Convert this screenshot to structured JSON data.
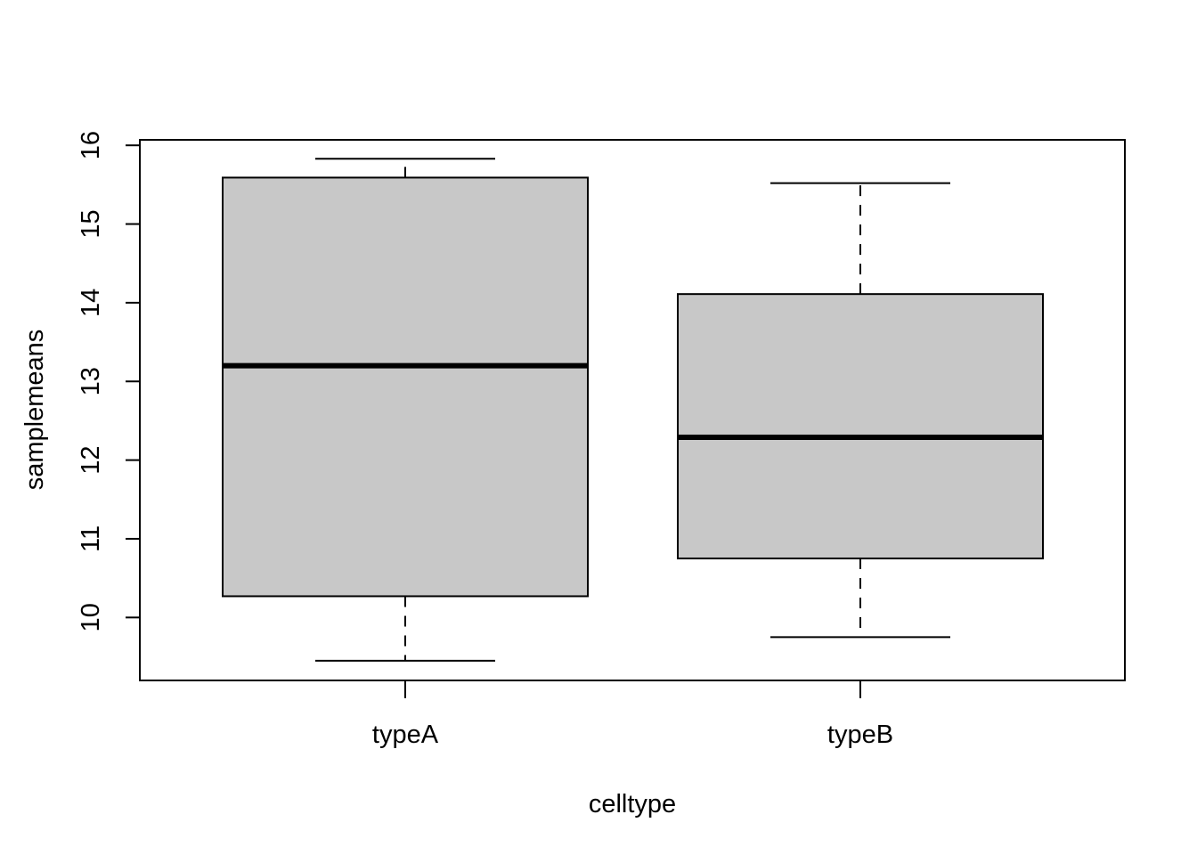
{
  "chart_data": {
    "type": "boxplot",
    "xlabel": "celltype",
    "ylabel": "samplemeans",
    "categories": [
      "typeA",
      "typeB"
    ],
    "boxes": [
      {
        "category": "typeA",
        "whisker_low": 9.45,
        "q1": 10.27,
        "median": 13.2,
        "q3": 15.59,
        "whisker_high": 15.83
      },
      {
        "category": "typeB",
        "whisker_low": 9.75,
        "q1": 10.75,
        "median": 12.29,
        "q3": 14.11,
        "whisker_high": 15.52
      }
    ],
    "y_ticks": [
      "10",
      "11",
      "12",
      "13",
      "14",
      "15",
      "16"
    ],
    "ylim": [
      9.2,
      16.07
    ],
    "box_fill": "#c8c8c8",
    "grid": false
  }
}
